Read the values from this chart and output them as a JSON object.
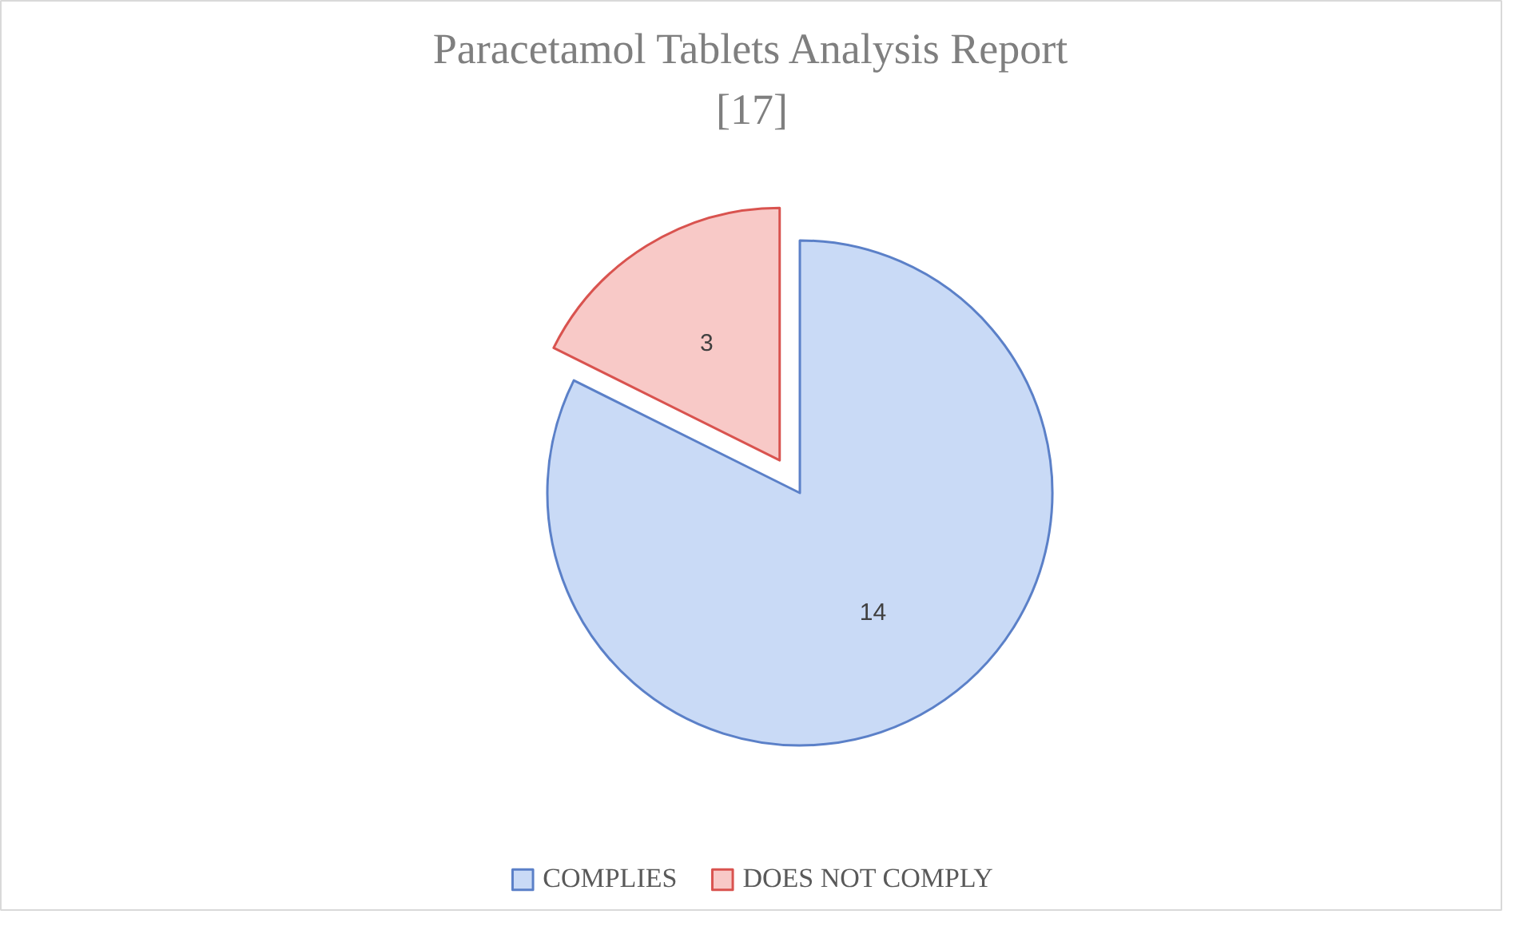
{
  "chart_data": {
    "type": "pie",
    "title": "Paracetamol Tablets Analysis Report [17]",
    "categories": [
      "COMPLIES",
      "DOES NOT COMPLY"
    ],
    "values": [
      14,
      3
    ],
    "colors": [
      "#c9daf6",
      "#f8c9c7"
    ],
    "data_labels": true,
    "legend": "bottom"
  }
}
